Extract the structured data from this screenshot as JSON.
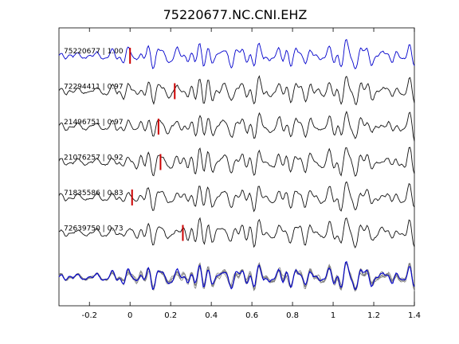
{
  "chart_data": {
    "type": "line",
    "title": "75220677.NC.CNI.EHZ",
    "xlabel": "",
    "ylabel": "",
    "xlim": [
      -0.35,
      1.4
    ],
    "xticks": [
      -0.2,
      0,
      0.2,
      0.4,
      0.6,
      0.8,
      1,
      1.2,
      1.4
    ],
    "xtick_labels": [
      "-0.2",
      "0",
      "0.2",
      "0.4",
      "0.6",
      "0.8",
      "1",
      "1.2",
      "1.4"
    ],
    "grid": false,
    "colors": {
      "master": "#0000cc",
      "trace": "#111111",
      "pick": "#cc0000",
      "overlay": "#808080"
    },
    "traces": [
      {
        "label": "75220677 | 1.00",
        "pick": 0.0,
        "color": "master"
      },
      {
        "label": "72294411 | 0.97",
        "pick": 0.22,
        "color": "trace"
      },
      {
        "label": "21496751 | 0.97",
        "pick": 0.14,
        "color": "trace"
      },
      {
        "label": "21076257 | 0.92",
        "pick": 0.15,
        "color": "trace"
      },
      {
        "label": "71835586 | 0.83",
        "pick": 0.01,
        "color": "trace"
      },
      {
        "label": "72639750 | 0.73",
        "pick": 0.26,
        "color": "trace"
      }
    ]
  }
}
